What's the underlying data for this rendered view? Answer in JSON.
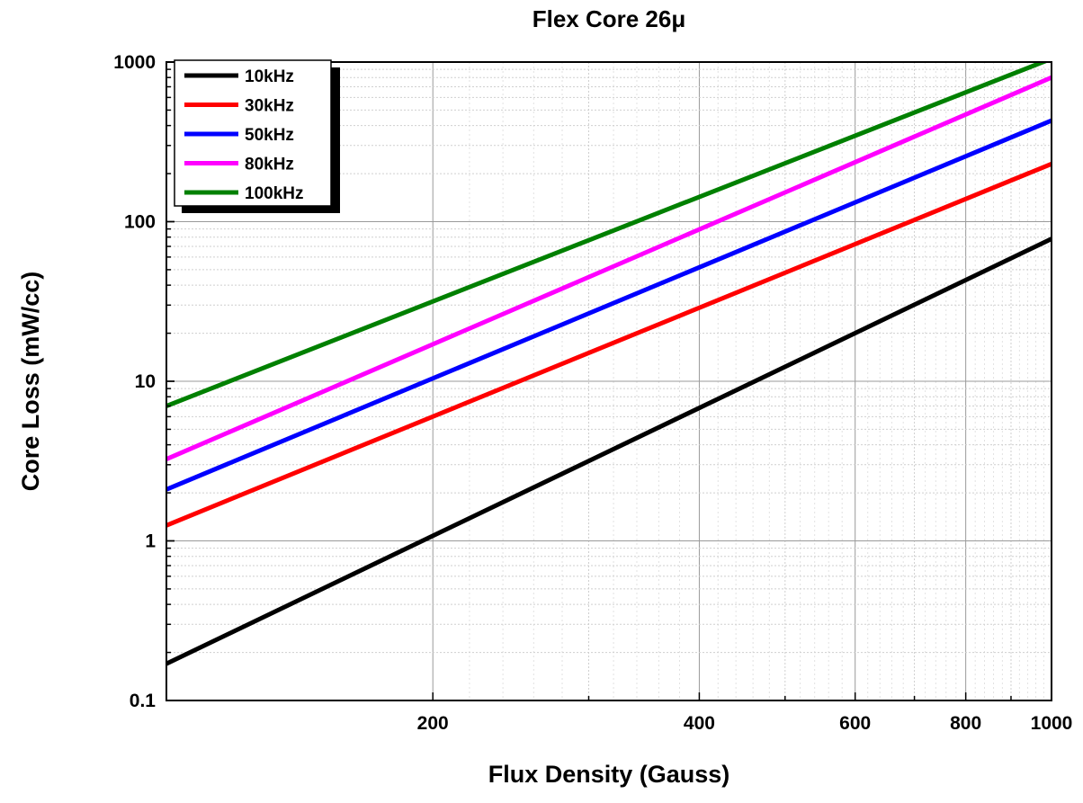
{
  "chart_data": {
    "type": "line",
    "title": "Flex Core 26μ",
    "xlabel": "Flux Density (Gauss)",
    "ylabel": "Core Loss (mW/cc)",
    "x_scale": "log",
    "y_scale": "log",
    "xlim": [
      100,
      1000
    ],
    "ylim": [
      0.1,
      1000
    ],
    "x_tick_labels": [
      {
        "value": 200,
        "label": "200"
      },
      {
        "value": 400,
        "label": "400"
      },
      {
        "value": 600,
        "label": "600"
      },
      {
        "value": 800,
        "label": "800"
      },
      {
        "value": 1000,
        "label": "1000"
      }
    ],
    "y_tick_labels": [
      {
        "value": 0.1,
        "label": "0.1"
      },
      {
        "value": 1,
        "label": "1"
      },
      {
        "value": 10,
        "label": "10"
      },
      {
        "value": 100,
        "label": "100"
      },
      {
        "value": 1000,
        "label": "1000"
      }
    ],
    "grid": true,
    "legend_position": "top-left",
    "series": [
      {
        "name": "10kHz",
        "color": "#000000",
        "x": [
          100,
          1000
        ],
        "y": [
          0.17,
          78
        ]
      },
      {
        "name": "30kHz",
        "color": "#ff0000",
        "x": [
          100,
          1000
        ],
        "y": [
          1.25,
          230
        ]
      },
      {
        "name": "50kHz",
        "color": "#0000ff",
        "x": [
          100,
          1000
        ],
        "y": [
          2.1,
          430
        ]
      },
      {
        "name": "80kHz",
        "color": "#ff00ff",
        "x": [
          100,
          1000
        ],
        "y": [
          3.25,
          800
        ]
      },
      {
        "name": "100kHz",
        "color": "#008000",
        "x": [
          100,
          1000
        ],
        "y": [
          7.0,
          1050
        ]
      }
    ]
  }
}
